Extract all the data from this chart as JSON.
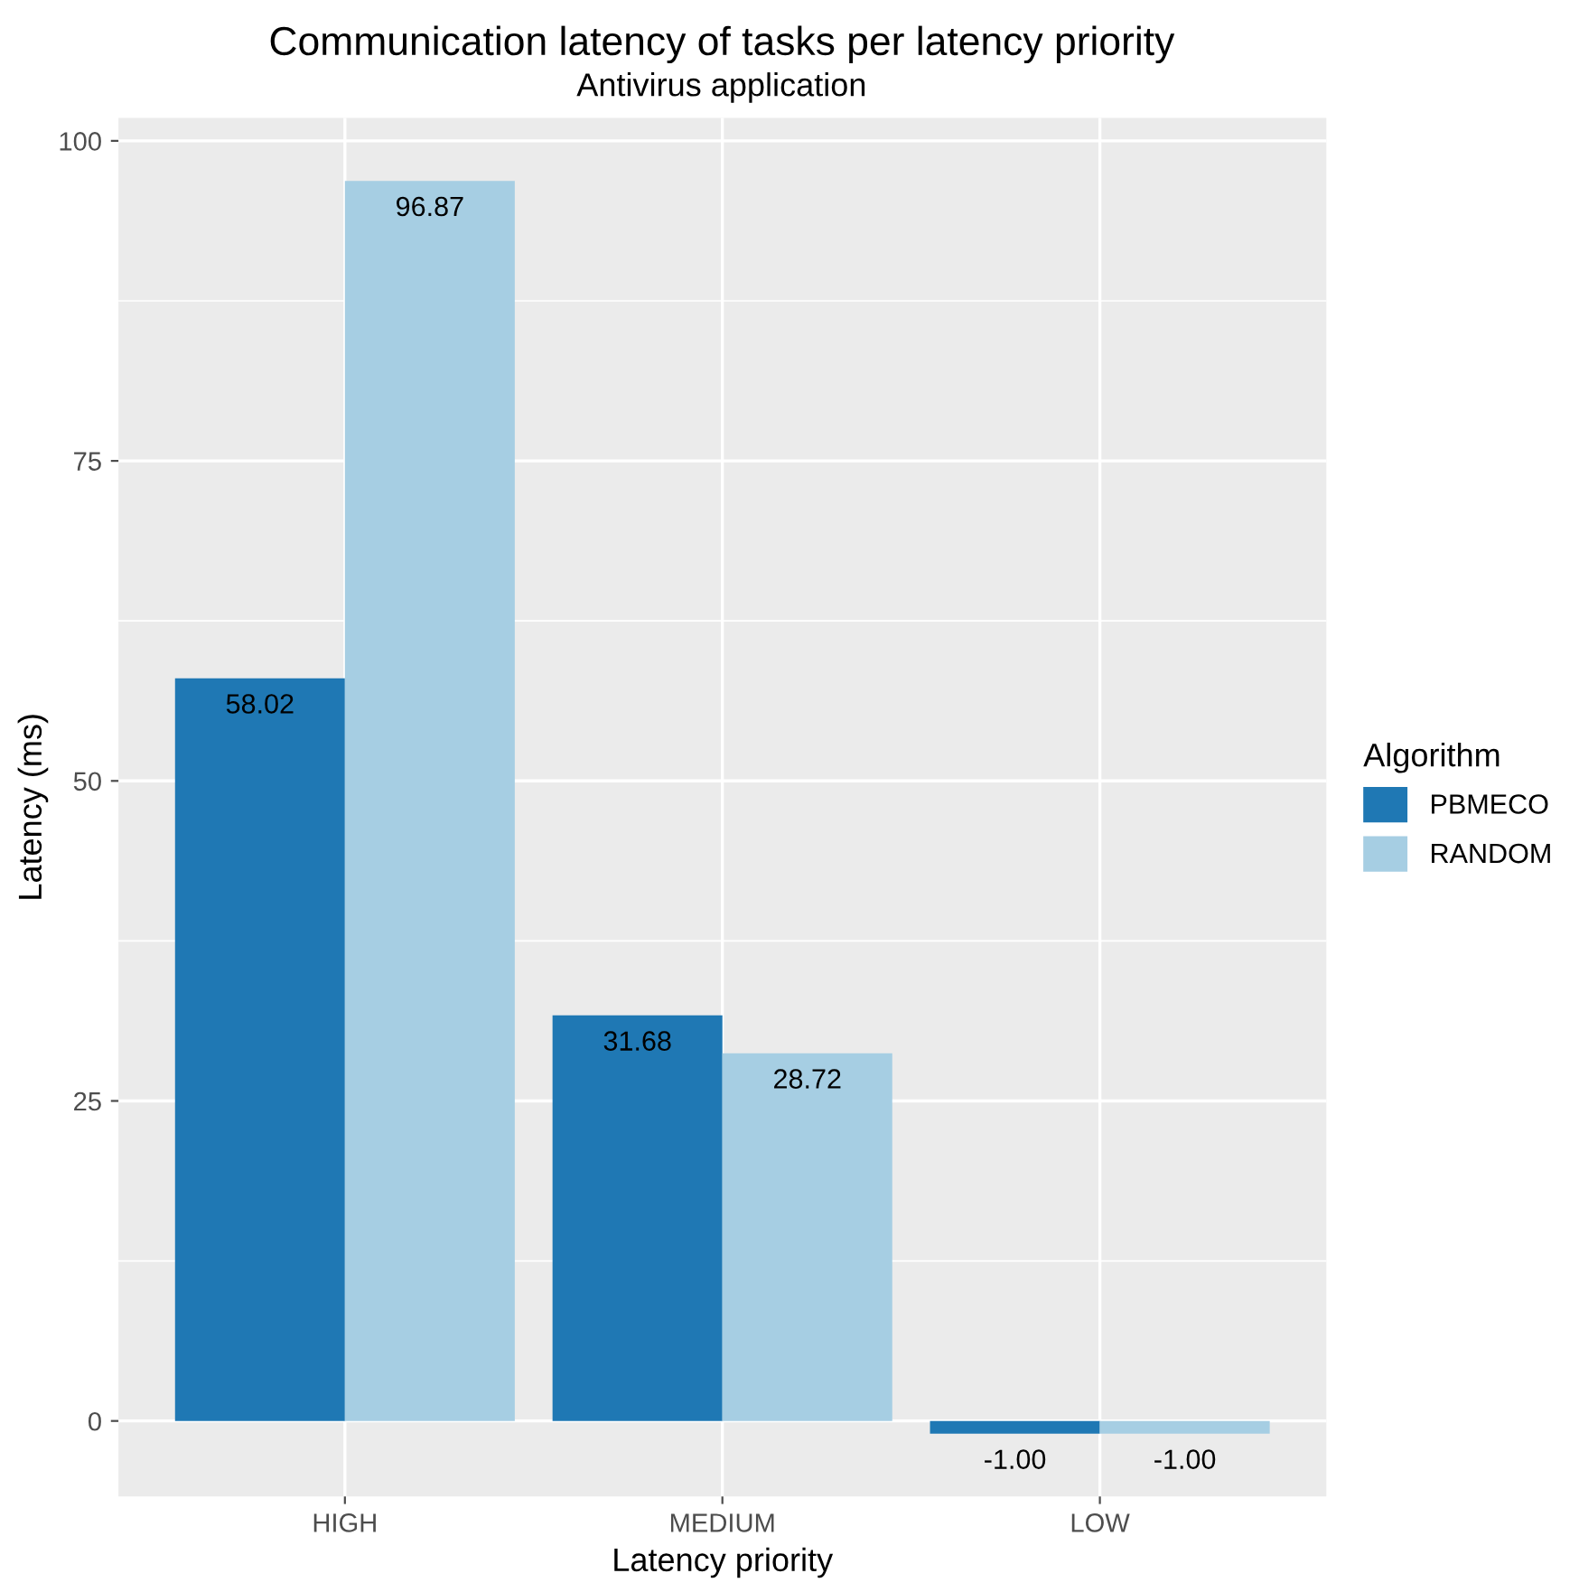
{
  "chart_data": {
    "type": "bar",
    "title": "Communication latency of tasks per latency priority",
    "subtitle": "Antivirus application",
    "xlabel": "Latency priority",
    "ylabel": "Latency (ms)",
    "legend_title": "Algorithm",
    "categories": [
      "HIGH",
      "MEDIUM",
      "LOW"
    ],
    "series": [
      {
        "name": "PBMECO",
        "color": "#1f78b4",
        "values": [
          58.02,
          31.68,
          -1.0
        ],
        "value_labels": [
          "58.02",
          "31.68",
          "-1.00"
        ]
      },
      {
        "name": "RANDOM",
        "color": "#a6cee3",
        "values": [
          96.87,
          28.72,
          -1.0
        ],
        "value_labels": [
          "96.87",
          "28.72",
          "-1.00"
        ]
      }
    ],
    "ylim": [
      -5.9,
      101.8
    ],
    "yticks": [
      0,
      25,
      50,
      75,
      100
    ],
    "grid": true,
    "legend": "right"
  }
}
